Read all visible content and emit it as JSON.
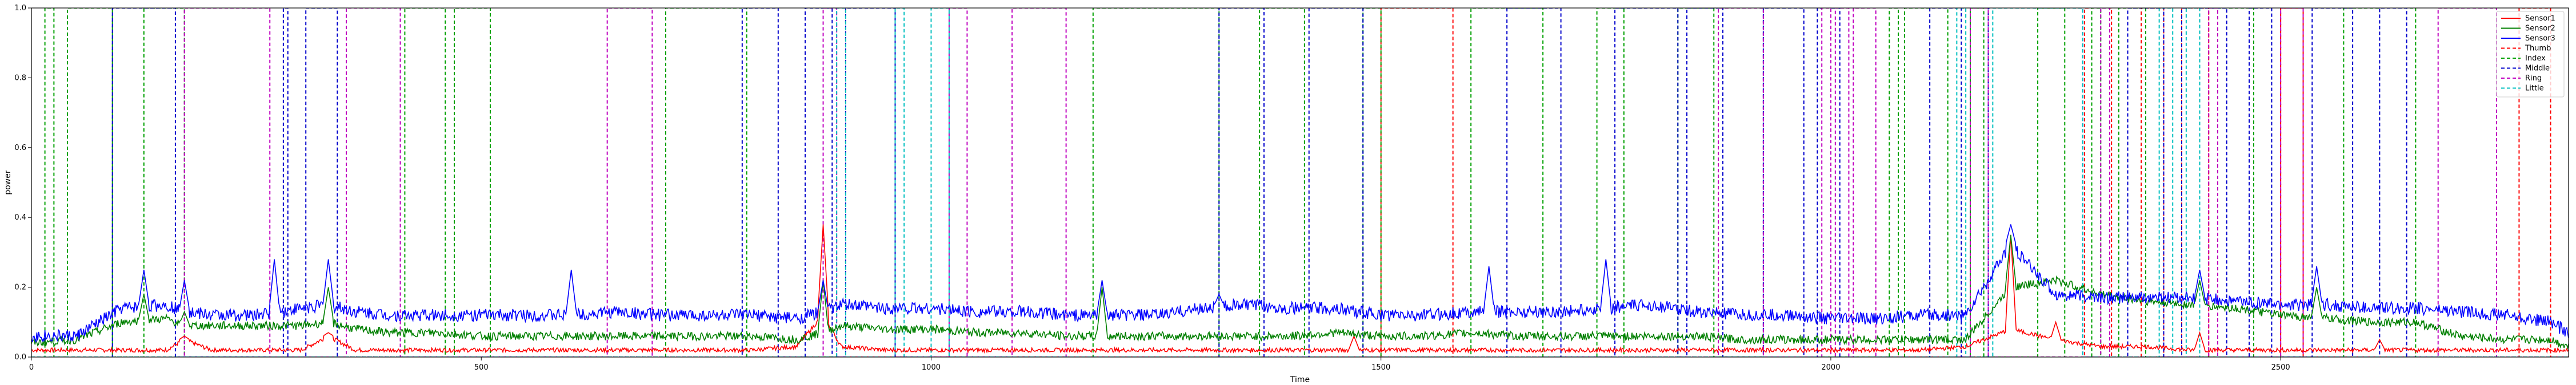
{
  "chart_data": {
    "type": "line",
    "xlabel": "Time",
    "ylabel": "power",
    "xlim": [
      0,
      2820
    ],
    "ylim": [
      0,
      1.0
    ],
    "xticks": [
      0,
      500,
      1000,
      1500,
      2000,
      2500
    ],
    "xtick_labels": [
      "0",
      "500",
      "1000",
      "1500",
      "2000",
      "2500"
    ],
    "yticks": [
      0.0,
      0.2,
      0.4,
      0.6,
      0.8,
      1.0
    ],
    "ytick_labels": [
      "0.0",
      "0.2",
      "0.4",
      "0.6",
      "0.8",
      "1.0"
    ],
    "legend_position": "top-right",
    "colors": {
      "Sensor1": "#ff0000",
      "Sensor2": "#008000",
      "Sensor3": "#0000ff",
      "Thumb": "#ff0000",
      "Index": "#00a000",
      "Middle": "#0000cc",
      "Ring": "#bf00bf",
      "Little": "#00bfbf"
    },
    "sensor_series": [
      {
        "name": "Sensor1",
        "color": "#ff0000",
        "x": [
          0,
          50,
          100,
          150,
          170,
          200,
          250,
          300,
          330,
          360,
          400,
          450,
          500,
          550,
          600,
          650,
          700,
          750,
          800,
          850,
          880,
          900,
          950,
          1000,
          1050,
          1100,
          1150,
          1200,
          1250,
          1300,
          1350,
          1400,
          1450,
          1500,
          1550,
          1600,
          1650,
          1700,
          1750,
          1800,
          1850,
          1900,
          1950,
          2000,
          2050,
          2100,
          2150,
          2200,
          2250,
          2300,
          2350,
          2400,
          2450,
          2500,
          2550,
          2600,
          2650,
          2700,
          2750,
          2800,
          2820
        ],
        "y": [
          0.02,
          0.02,
          0.02,
          0.02,
          0.05,
          0.02,
          0.02,
          0.02,
          0.06,
          0.02,
          0.02,
          0.02,
          0.02,
          0.02,
          0.02,
          0.02,
          0.02,
          0.02,
          0.02,
          0.03,
          0.12,
          0.03,
          0.02,
          0.02,
          0.02,
          0.02,
          0.02,
          0.02,
          0.02,
          0.02,
          0.02,
          0.02,
          0.02,
          0.02,
          0.02,
          0.02,
          0.02,
          0.02,
          0.02,
          0.02,
          0.02,
          0.02,
          0.02,
          0.02,
          0.02,
          0.02,
          0.03,
          0.08,
          0.05,
          0.03,
          0.03,
          0.02,
          0.02,
          0.02,
          0.02,
          0.02,
          0.02,
          0.02,
          0.02,
          0.02,
          0.02
        ]
      },
      {
        "name": "Sensor2",
        "color": "#008000",
        "x": [
          0,
          50,
          100,
          150,
          170,
          200,
          250,
          300,
          330,
          360,
          400,
          450,
          500,
          550,
          600,
          650,
          700,
          750,
          800,
          850,
          880,
          900,
          950,
          1000,
          1050,
          1100,
          1150,
          1200,
          1250,
          1300,
          1350,
          1400,
          1450,
          1500,
          1550,
          1600,
          1650,
          1700,
          1750,
          1800,
          1850,
          1900,
          1950,
          2000,
          2050,
          2100,
          2150,
          2200,
          2250,
          2300,
          2350,
          2400,
          2450,
          2500,
          2550,
          2600,
          2650,
          2700,
          2750,
          2800,
          2820
        ],
        "y": [
          0.04,
          0.05,
          0.1,
          0.11,
          0.09,
          0.09,
          0.09,
          0.09,
          0.1,
          0.08,
          0.07,
          0.07,
          0.06,
          0.06,
          0.06,
          0.06,
          0.06,
          0.06,
          0.06,
          0.05,
          0.07,
          0.09,
          0.08,
          0.08,
          0.07,
          0.07,
          0.06,
          0.06,
          0.06,
          0.06,
          0.06,
          0.06,
          0.07,
          0.06,
          0.06,
          0.07,
          0.06,
          0.06,
          0.06,
          0.06,
          0.06,
          0.05,
          0.05,
          0.05,
          0.05,
          0.05,
          0.05,
          0.2,
          0.22,
          0.18,
          0.16,
          0.15,
          0.14,
          0.12,
          0.11,
          0.1,
          0.1,
          0.06,
          0.05,
          0.05,
          0.03
        ]
      },
      {
        "name": "Sensor3",
        "color": "#0000ff",
        "x": [
          0,
          50,
          100,
          150,
          170,
          200,
          250,
          300,
          330,
          360,
          400,
          450,
          500,
          550,
          600,
          650,
          700,
          750,
          800,
          850,
          880,
          900,
          950,
          1000,
          1050,
          1100,
          1150,
          1200,
          1250,
          1300,
          1350,
          1400,
          1450,
          1500,
          1550,
          1600,
          1650,
          1700,
          1750,
          1800,
          1850,
          1900,
          1950,
          2000,
          2050,
          2100,
          2150,
          2200,
          2250,
          2300,
          2350,
          2400,
          2450,
          2500,
          2550,
          2600,
          2650,
          2700,
          2750,
          2800,
          2820
        ],
        "y": [
          0.06,
          0.06,
          0.14,
          0.15,
          0.13,
          0.12,
          0.12,
          0.14,
          0.15,
          0.13,
          0.12,
          0.12,
          0.12,
          0.12,
          0.12,
          0.13,
          0.12,
          0.12,
          0.12,
          0.11,
          0.13,
          0.15,
          0.14,
          0.14,
          0.13,
          0.13,
          0.12,
          0.12,
          0.12,
          0.14,
          0.15,
          0.14,
          0.14,
          0.12,
          0.12,
          0.13,
          0.13,
          0.13,
          0.14,
          0.15,
          0.13,
          0.12,
          0.12,
          0.11,
          0.11,
          0.12,
          0.12,
          0.32,
          0.18,
          0.17,
          0.17,
          0.17,
          0.16,
          0.15,
          0.15,
          0.14,
          0.14,
          0.13,
          0.12,
          0.1,
          0.07
        ]
      }
    ],
    "label_series": [
      {
        "name": "Thumb",
        "color": "#ff0000",
        "segments": [
          [
            1500,
            1580
          ],
          [
            2282,
            2312
          ],
          [
            2345,
            2370
          ],
          [
            2390,
            2420
          ],
          [
            2500,
            2525
          ],
          [
            2765,
            2800
          ]
        ]
      },
      {
        "name": "Index",
        "color": "#00a000",
        "segments": [
          [
            15,
            25
          ],
          [
            40,
            90
          ],
          [
            125,
            170
          ],
          [
            415,
            460
          ],
          [
            470,
            510
          ],
          [
            705,
            795
          ],
          [
            1180,
            1320
          ],
          [
            1365,
            1415
          ],
          [
            1480,
            1500
          ],
          [
            1600,
            1680
          ],
          [
            1740,
            1770
          ],
          [
            1830,
            1870
          ],
          [
            2065,
            2075
          ],
          [
            2082,
            2130
          ],
          [
            2155,
            2170
          ],
          [
            2230,
            2260
          ],
          [
            2290,
            2300
          ],
          [
            2320,
            2350
          ],
          [
            2430,
            2470
          ],
          [
            2570,
            2650
          ]
        ]
      },
      {
        "name": "Middle",
        "color": "#0000cc",
        "segments": [
          [
            90,
            160
          ],
          [
            280,
            285
          ],
          [
            305,
            340
          ],
          [
            790,
            830
          ],
          [
            860,
            890
          ],
          [
            905,
            960
          ],
          [
            1320,
            1370
          ],
          [
            1420,
            1480
          ],
          [
            1640,
            1700
          ],
          [
            1760,
            1830
          ],
          [
            1840,
            1880
          ],
          [
            1925,
            1970
          ],
          [
            1985,
            2010
          ],
          [
            2110,
            2145
          ],
          [
            2175,
            2280
          ],
          [
            2330,
            2370
          ],
          [
            2390,
            2440
          ],
          [
            2465,
            2490
          ],
          [
            2535,
            2580
          ],
          [
            2610,
            2640
          ]
        ]
      },
      {
        "name": "Ring",
        "color": "#bf00bf",
        "segments": [
          [
            170,
            265
          ],
          [
            410,
            405
          ],
          [
            350,
            410
          ],
          [
            640,
            690
          ],
          [
            880,
            895
          ],
          [
            1020,
            1040
          ],
          [
            1090,
            1150
          ],
          [
            1875,
            1925
          ],
          [
            1990,
            2000
          ],
          [
            2005,
            2020
          ],
          [
            2025,
            2050
          ],
          [
            2155,
            2175
          ],
          [
            2300,
            2310
          ],
          [
            2420,
            2430
          ],
          [
            2500,
            2525
          ],
          [
            2675,
            2740
          ]
        ]
      },
      {
        "name": "Little",
        "color": "#00bfbf",
        "segments": [
          [
            895,
            905
          ],
          [
            960,
            970
          ],
          [
            1000,
            1020
          ],
          [
            2140,
            2150
          ],
          [
            2180,
            2280
          ],
          [
            2365,
            2380
          ],
          [
            2395,
            2410
          ]
        ]
      }
    ],
    "spikes": {
      "Sensor1": [
        [
          170,
          0.06
        ],
        [
          330,
          0.07
        ],
        [
          880,
          0.38
        ],
        [
          1470,
          0.06
        ],
        [
          2200,
          0.35
        ],
        [
          2250,
          0.1
        ],
        [
          2410,
          0.07
        ],
        [
          2610,
          0.05
        ]
      ],
      "Sensor2": [
        [
          125,
          0.18
        ],
        [
          170,
          0.13
        ],
        [
          330,
          0.2
        ],
        [
          880,
          0.22
        ],
        [
          1190,
          0.2
        ],
        [
          2200,
          0.35
        ],
        [
          2410,
          0.22
        ],
        [
          2540,
          0.2
        ]
      ],
      "Sensor3": [
        [
          125,
          0.25
        ],
        [
          170,
          0.22
        ],
        [
          270,
          0.28
        ],
        [
          330,
          0.28
        ],
        [
          600,
          0.25
        ],
        [
          880,
          0.22
        ],
        [
          1190,
          0.22
        ],
        [
          1320,
          0.18
        ],
        [
          1620,
          0.26
        ],
        [
          1750,
          0.28
        ],
        [
          2200,
          0.38
        ],
        [
          2410,
          0.25
        ],
        [
          2540,
          0.26
        ]
      ]
    }
  }
}
